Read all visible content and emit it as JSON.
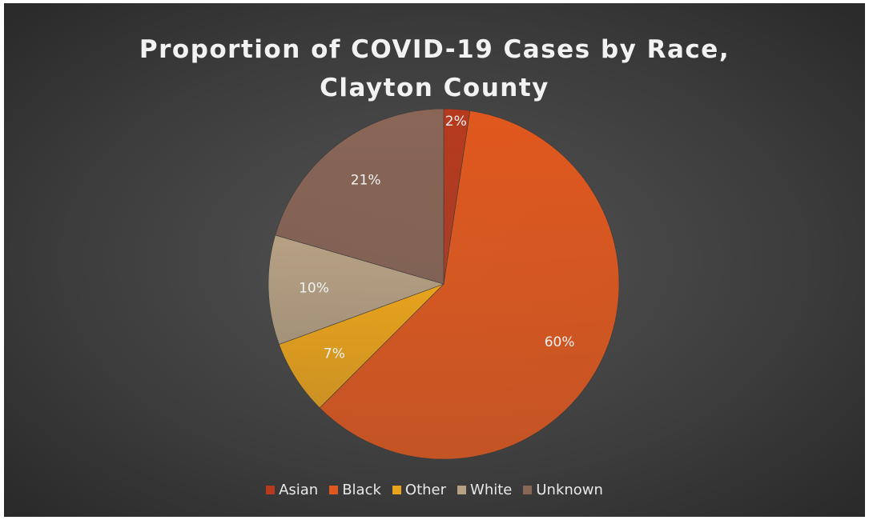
{
  "chart_data": {
    "type": "pie",
    "title": [
      "Proportion of COVID-19 Cases by Race,",
      "Clayton County"
    ],
    "categories": [
      "Asian",
      "Black",
      "Other",
      "White",
      "Unknown"
    ],
    "values": [
      2.4,
      60.1,
      6.9,
      10.1,
      20.5
    ],
    "labels": [
      "2%",
      "60%",
      "7%",
      "10%",
      "21%"
    ],
    "colors": [
      "#b83a1e",
      "#e0581e",
      "#e8a21c",
      "#b7a184",
      "#8a6656"
    ],
    "start_angle_deg": 0,
    "direction": "clockwise",
    "legend_position": "bottom"
  }
}
